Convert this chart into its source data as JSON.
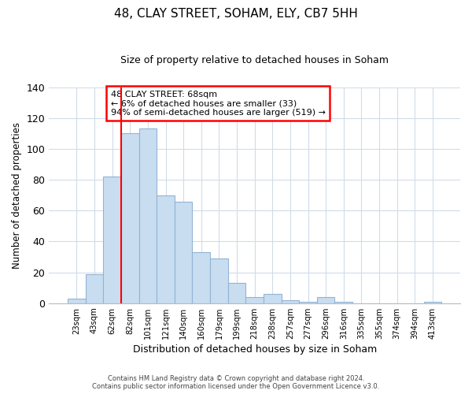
{
  "title": "48, CLAY STREET, SOHAM, ELY, CB7 5HH",
  "subtitle": "Size of property relative to detached houses in Soham",
  "bar_labels": [
    "23sqm",
    "43sqm",
    "62sqm",
    "82sqm",
    "101sqm",
    "121sqm",
    "140sqm",
    "160sqm",
    "179sqm",
    "199sqm",
    "218sqm",
    "238sqm",
    "257sqm",
    "277sqm",
    "296sqm",
    "316sqm",
    "335sqm",
    "355sqm",
    "374sqm",
    "394sqm",
    "413sqm"
  ],
  "bar_values": [
    3,
    19,
    82,
    110,
    113,
    70,
    66,
    33,
    29,
    13,
    4,
    6,
    2,
    1,
    4,
    1,
    0,
    0,
    0,
    0,
    1
  ],
  "bar_color": "#c9ddf0",
  "bar_edge_color": "#92b4d4",
  "vline_x_index": 2,
  "vline_color": "red",
  "xlabel": "Distribution of detached houses by size in Soham",
  "ylabel": "Number of detached properties",
  "ylim": [
    0,
    140
  ],
  "yticks": [
    0,
    20,
    40,
    60,
    80,
    100,
    120,
    140
  ],
  "annotation_title": "48 CLAY STREET: 68sqm",
  "annotation_line1": "← 6% of detached houses are smaller (33)",
  "annotation_line2": "94% of semi-detached houses are larger (519) →",
  "footer_line1": "Contains HM Land Registry data © Crown copyright and database right 2024.",
  "footer_line2": "Contains public sector information licensed under the Open Government Licence v3.0.",
  "background_color": "#ffffff",
  "grid_color": "#d0dce8"
}
